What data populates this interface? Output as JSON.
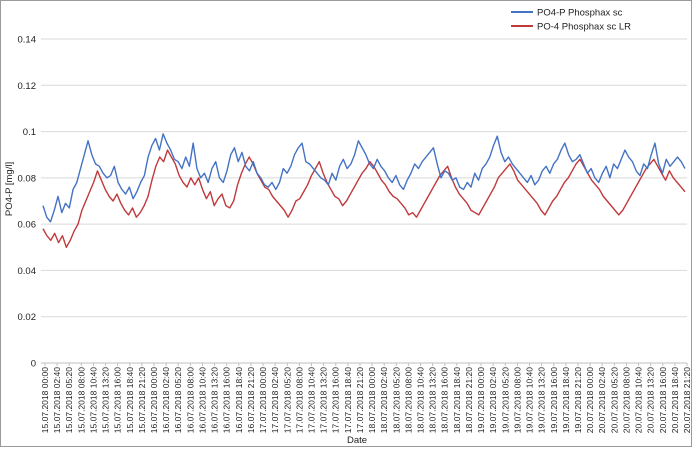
{
  "chart_data": {
    "type": "line",
    "title": "",
    "xlabel": "Date",
    "ylabel": "PO4-P [mg/l]",
    "ylim": [
      0,
      0.14
    ],
    "y_ticks": [
      0,
      0.02,
      0.04,
      0.06,
      0.08,
      0.1,
      0.12,
      0.14
    ],
    "y_tick_labels": [
      "0",
      "0.02",
      "0.04",
      "0.06",
      "0.08",
      "0.1",
      "0.12",
      "0.14"
    ],
    "x_tick_labels": [
      "15.07.2018 00:00",
      "15.07.2018 02:40",
      "15.07.2018 05:20",
      "15.07.2018 08:00",
      "15.07.2018 10:40",
      "15.07.2018 13:20",
      "15.07.2018 16:00",
      "15.07.2018 18:40",
      "15.07.2018 21:20",
      "16.07.2018 00:00",
      "16.07.2018 02:40",
      "16.07.2018 05:20",
      "16.07.2018 08:00",
      "16.07.2018 10:40",
      "16.07.2018 13:20",
      "16.07.2018 16:00",
      "16.07.2018 18:40",
      "16.07.2018 21:20",
      "17.07.2018 00:00",
      "17.07.2018 02:40",
      "17.07.2018 05:20",
      "17.07.2018 08:00",
      "17.07.2018 10:40",
      "17.07.2018 13:20",
      "17.07.2018 16:00",
      "17.07.2018 18:40",
      "17.07.2018 21:20",
      "18.07.2018 00:00",
      "18.07.2018 02:40",
      "18.07.2018 05:20",
      "18.07.2018 08:00",
      "18.07.2018 10:40",
      "18.07.2018 13:20",
      "18.07.2018 16:00",
      "18.07.2018 18:40",
      "18.07.2018 21:20",
      "19.07.2018 00:00",
      "19.07.2018 02:40",
      "19.07.2018 05:20",
      "19.07.2018 08:00",
      "19.07.2018 10:40",
      "19.07.2018 13:20",
      "19.07.2018 16:00",
      "19.07.2018 18:40",
      "19.07.2018 21:20",
      "20.07.2018 00:00",
      "20.07.2018 02:40",
      "20.07.2018 05:20",
      "20.07.2018 08:00",
      "20.07.2018 10:40",
      "20.07.2018 13:20",
      "20.07.2018 16:00",
      "20.07.2018 18:40",
      "20.07.2018 21:20"
    ],
    "grid": "horizontal",
    "legend_position": "top-right",
    "series": [
      {
        "name": "PO4-P Phosphax sc",
        "color": "#4472c4",
        "values": [
          0.068,
          0.063,
          0.061,
          0.066,
          0.072,
          0.065,
          0.069,
          0.067,
          0.075,
          0.078,
          0.084,
          0.09,
          0.096,
          0.09,
          0.086,
          0.085,
          0.082,
          0.08,
          0.081,
          0.085,
          0.078,
          0.075,
          0.073,
          0.076,
          0.071,
          0.074,
          0.078,
          0.081,
          0.089,
          0.094,
          0.097,
          0.092,
          0.099,
          0.095,
          0.092,
          0.088,
          0.087,
          0.084,
          0.089,
          0.085,
          0.095,
          0.084,
          0.08,
          0.082,
          0.078,
          0.084,
          0.087,
          0.08,
          0.078,
          0.083,
          0.09,
          0.093,
          0.087,
          0.091,
          0.085,
          0.083,
          0.087,
          0.082,
          0.08,
          0.077,
          0.076,
          0.078,
          0.075,
          0.078,
          0.084,
          0.082,
          0.085,
          0.09,
          0.093,
          0.095,
          0.087,
          0.086,
          0.084,
          0.082,
          0.08,
          0.079,
          0.077,
          0.082,
          0.079,
          0.085,
          0.088,
          0.084,
          0.086,
          0.09,
          0.096,
          0.093,
          0.09,
          0.086,
          0.084,
          0.088,
          0.085,
          0.083,
          0.08,
          0.078,
          0.081,
          0.077,
          0.075,
          0.079,
          0.082,
          0.086,
          0.084,
          0.087,
          0.089,
          0.091,
          0.093,
          0.086,
          0.08,
          0.083,
          0.082,
          0.079,
          0.08,
          0.076,
          0.075,
          0.078,
          0.076,
          0.082,
          0.079,
          0.084,
          0.086,
          0.089,
          0.094,
          0.098,
          0.091,
          0.087,
          0.089,
          0.086,
          0.084,
          0.082,
          0.08,
          0.078,
          0.081,
          0.077,
          0.079,
          0.083,
          0.085,
          0.082,
          0.086,
          0.088,
          0.092,
          0.095,
          0.09,
          0.087,
          0.088,
          0.09,
          0.086,
          0.082,
          0.084,
          0.08,
          0.078,
          0.082,
          0.085,
          0.08,
          0.086,
          0.084,
          0.088,
          0.092,
          0.089,
          0.087,
          0.083,
          0.081,
          0.086,
          0.084,
          0.09,
          0.095,
          0.086,
          0.082,
          0.088,
          0.085,
          0.087,
          0.089,
          0.087,
          0.084
        ]
      },
      {
        "name": "PO-4 Phosphax sc LR",
        "color": "#c0393b",
        "values": [
          0.058,
          0.055,
          0.053,
          0.056,
          0.052,
          0.055,
          0.05,
          0.053,
          0.057,
          0.06,
          0.066,
          0.07,
          0.074,
          0.078,
          0.083,
          0.079,
          0.075,
          0.072,
          0.07,
          0.073,
          0.069,
          0.066,
          0.064,
          0.067,
          0.063,
          0.065,
          0.068,
          0.072,
          0.079,
          0.085,
          0.089,
          0.087,
          0.092,
          0.089,
          0.086,
          0.081,
          0.078,
          0.076,
          0.08,
          0.077,
          0.08,
          0.075,
          0.071,
          0.074,
          0.068,
          0.071,
          0.073,
          0.068,
          0.067,
          0.07,
          0.077,
          0.082,
          0.086,
          0.089,
          0.086,
          0.082,
          0.079,
          0.076,
          0.075,
          0.072,
          0.07,
          0.068,
          0.066,
          0.063,
          0.066,
          0.07,
          0.071,
          0.074,
          0.077,
          0.081,
          0.084,
          0.087,
          0.082,
          0.078,
          0.075,
          0.072,
          0.071,
          0.068,
          0.07,
          0.073,
          0.076,
          0.079,
          0.082,
          0.084,
          0.087,
          0.085,
          0.082,
          0.079,
          0.077,
          0.074,
          0.072,
          0.071,
          0.069,
          0.067,
          0.064,
          0.065,
          0.063,
          0.066,
          0.069,
          0.072,
          0.075,
          0.078,
          0.081,
          0.083,
          0.085,
          0.08,
          0.076,
          0.073,
          0.071,
          0.069,
          0.066,
          0.065,
          0.064,
          0.067,
          0.07,
          0.073,
          0.076,
          0.08,
          0.082,
          0.084,
          0.086,
          0.083,
          0.079,
          0.077,
          0.075,
          0.073,
          0.071,
          0.069,
          0.066,
          0.064,
          0.067,
          0.07,
          0.072,
          0.075,
          0.078,
          0.08,
          0.083,
          0.086,
          0.088,
          0.085,
          0.082,
          0.079,
          0.077,
          0.075,
          0.072,
          0.07,
          0.068,
          0.066,
          0.064,
          0.066,
          0.069,
          0.072,
          0.075,
          0.078,
          0.081,
          0.084,
          0.086,
          0.088,
          0.085,
          0.082,
          0.079,
          0.083,
          0.08,
          0.078,
          0.076,
          0.074
        ]
      }
    ]
  }
}
